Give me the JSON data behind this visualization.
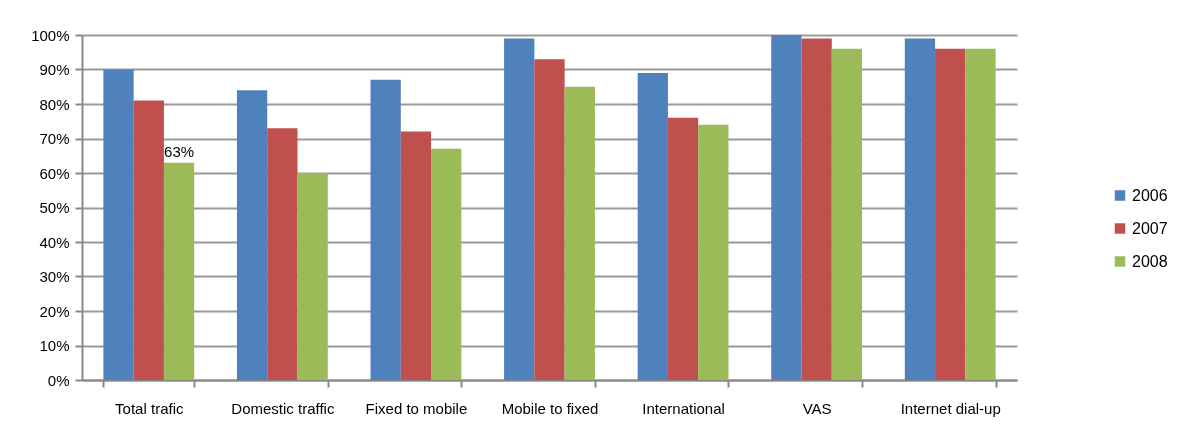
{
  "chart_data": {
    "type": "bar",
    "categories": [
      "Total trafic",
      "Domestic traffic",
      "Fixed to mobile",
      "Mobile to fixed",
      "International",
      "VAS",
      "Internet dial-up"
    ],
    "series": [
      {
        "name": "2006",
        "color": "#4f81bd",
        "values": [
          90,
          84,
          87,
          99,
          89,
          100,
          99
        ]
      },
      {
        "name": "2007",
        "color": "#c0504d",
        "values": [
          81,
          73,
          72,
          93,
          76,
          99,
          96
        ]
      },
      {
        "name": "2008",
        "color": "#9bbb59",
        "values": [
          63,
          60,
          67,
          85,
          74,
          96,
          96
        ],
        "value_labels": [
          "63%",
          null,
          null,
          null,
          null,
          null,
          null
        ]
      }
    ],
    "ylim": [
      0,
      100
    ],
    "yticks": [
      {
        "value": 0,
        "label": "0%"
      },
      {
        "value": 10,
        "label": "10%"
      },
      {
        "value": 20,
        "label": "20%"
      },
      {
        "value": 30,
        "label": "30%"
      },
      {
        "value": 40,
        "label": "40%"
      },
      {
        "value": 50,
        "label": "50%"
      },
      {
        "value": 60,
        "label": "60%"
      },
      {
        "value": 70,
        "label": "70%"
      },
      {
        "value": 80,
        "label": "80%"
      },
      {
        "value": 90,
        "label": "90%"
      },
      {
        "value": 100,
        "label": "100%"
      }
    ],
    "grid": "y",
    "legend": "right"
  }
}
